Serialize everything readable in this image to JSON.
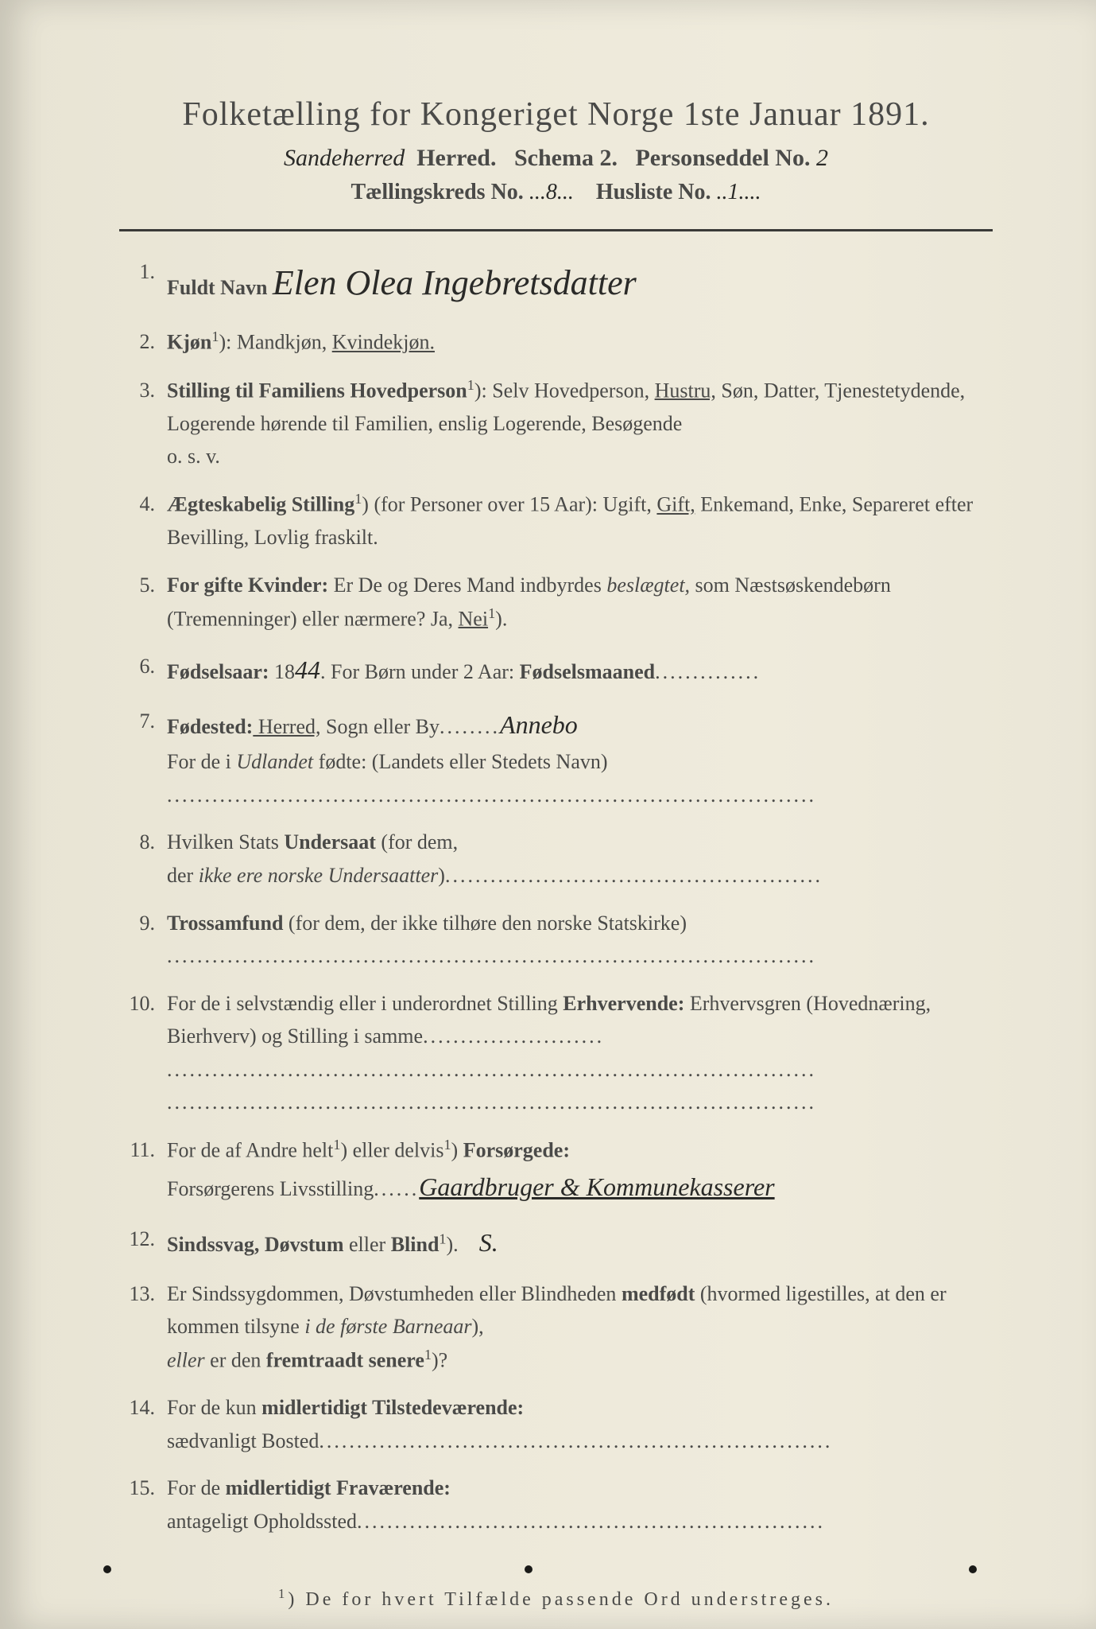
{
  "header": {
    "title": "Folketælling for Kongeriget Norge 1ste Januar 1891.",
    "herred_hw": "Sandeherred",
    "herred_label": "Herred.",
    "schema": "Schema 2.",
    "personseddel_label": "Personseddel No.",
    "personseddel_hw": "2",
    "kreds_label": "Tællingskreds No.",
    "kreds_hw": "8",
    "husliste_label": "Husliste No.",
    "husliste_hw": "1"
  },
  "fields": {
    "f1": {
      "num": "1.",
      "label": "Fuldt Navn",
      "value_hw": "Elen Olea Ingebretsdatter"
    },
    "f2": {
      "num": "2.",
      "label": "Kjøn",
      "sup": "1",
      "text": "): Mandkjøn, ",
      "underlined": "Kvindekjøn."
    },
    "f3": {
      "num": "3.",
      "label": "Stilling til Familiens Hovedperson",
      "sup": "1",
      "text1": "): Selv Hovedperson, ",
      "underlined": "Hustru,",
      "text2": " Søn, Datter, Tjenestetydende, Logerende hørende til Familien, enslig Logerende, Besøgende",
      "text3": "o. s. v."
    },
    "f4": {
      "num": "4.",
      "label": "Ægteskabelig Stilling",
      "sup": "1",
      "text1": ") (for Personer over 15 Aar): Ugift, ",
      "underlined": "Gift,",
      "text2": " Enkemand, Enke, Separeret efter Bevilling, Lovlig fraskilt."
    },
    "f5": {
      "num": "5.",
      "label1": "For gifte Kvinder:",
      "text1": " Er De og Deres Mand indbyrdes ",
      "italic1": "beslægtet,",
      "text2": " som Næstsøskendebørn (Tremenninger) eller nærmere? Ja, ",
      "underlined": "Nei",
      "sup": "1",
      "text3": ")."
    },
    "f6": {
      "num": "6.",
      "label": "Fødselsaar:",
      "year_prefix": " 18",
      "year_hw": "44",
      "text": ". For Børn under 2 Aar: ",
      "label2": "Fødselsmaaned"
    },
    "f7": {
      "num": "7.",
      "label": "Fødested:",
      "underlined": " Herred,",
      "text1": " Sogn eller By",
      "value_hw": "Annebo",
      "text2": "For de i ",
      "italic": "Udlandet",
      "text3": " fødte: (Landets eller Stedets Navn)"
    },
    "f8": {
      "num": "8.",
      "text1": "Hvilken Stats ",
      "label": "Undersaat",
      "text2": " (for dem,",
      "text3": "der ",
      "italic": "ikke ere norske Undersaatter",
      "text4": ")"
    },
    "f9": {
      "num": "9.",
      "label": "Trossamfund",
      "text": " (for dem, der ikke tilhøre den norske Statskirke)"
    },
    "f10": {
      "num": "10.",
      "text1": "For de i selvstændig eller i underordnet Stilling ",
      "label": "Erhvervende:",
      "text2": " Erhvervsgren (Hovednæring, Bierhverv) og Stilling i samme"
    },
    "f11": {
      "num": "11.",
      "text1": "For de af Andre helt",
      "sup1": "1",
      "text2": ") eller delvis",
      "sup2": "1",
      "text3": ") ",
      "label": "Forsørgede:",
      "text4": "Forsørgerens Livsstilling",
      "value_hw": "Gaardbruger & Kommunekasserer"
    },
    "f12": {
      "num": "12.",
      "label": "Sindssvag, Døvstum",
      "text": " eller ",
      "label2": "Blind",
      "sup": "1",
      "text2": ").",
      "value_hw": "S."
    },
    "f13": {
      "num": "13.",
      "text1": "Er Sindssygdommen, Døvstumheden eller Blindheden ",
      "label1": "medfødt",
      "text2": " (hvormed ligestilles, at den er kommen tilsyne ",
      "italic": "i de første Barneaar",
      "text3": "),",
      "italic2": "eller",
      "text4": " er den ",
      "label2": "fremtraadt senere",
      "sup": "1",
      "text5": ")?"
    },
    "f14": {
      "num": "14.",
      "text1": "For de kun ",
      "label": "midlertidigt Tilstedeværende:",
      "text2": "sædvanligt Bosted"
    },
    "f15": {
      "num": "15.",
      "text1": "For de ",
      "label": "midlertidigt Fraværende:",
      "text2": "antageligt Opholdssted"
    }
  },
  "footnote": {
    "sup": "1",
    "text": ") De for hvert Tilfælde passende Ord understreges."
  },
  "colors": {
    "paper": "#ece8d9",
    "text": "#4a4a48",
    "handwriting": "#2a2a28",
    "divider": "#3a3a38"
  }
}
